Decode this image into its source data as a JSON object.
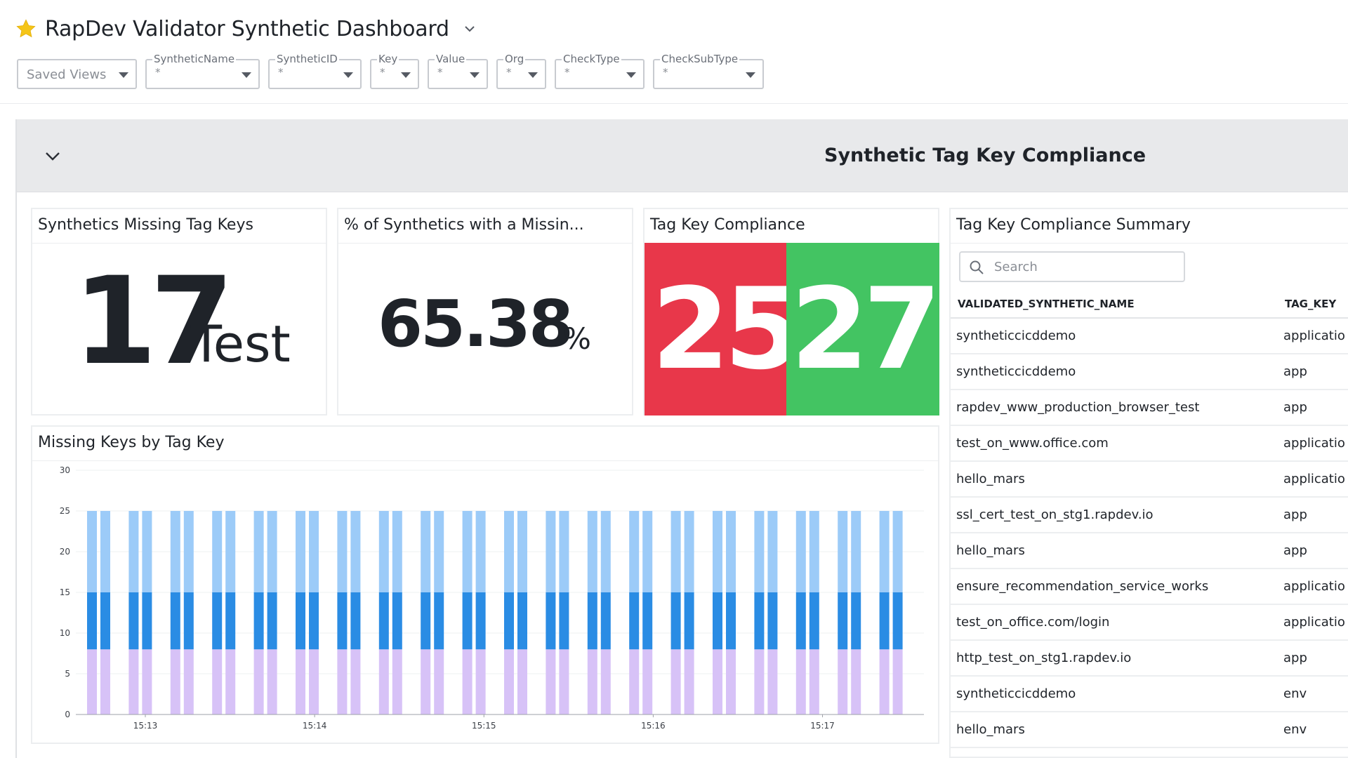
{
  "dashboard": {
    "title": "RapDev Validator Synthetic Dashboard",
    "star_color": "#f5c518"
  },
  "variables": [
    {
      "label": "",
      "value": "Saved Views"
    },
    {
      "label": "SyntheticName",
      "value": "*"
    },
    {
      "label": "SyntheticID",
      "value": "*"
    },
    {
      "label": "Key",
      "value": "*"
    },
    {
      "label": "Value",
      "value": "*"
    },
    {
      "label": "Org",
      "value": "*"
    },
    {
      "label": "CheckType",
      "value": "*"
    },
    {
      "label": "CheckSubType",
      "value": "*"
    }
  ],
  "group": {
    "title": "Synthetic Tag Key Compliance"
  },
  "widgets": {
    "missing": {
      "title": "Synthetics Missing Tag Keys",
      "value": "17",
      "unit": "Test"
    },
    "percent": {
      "title": "% of Synthetics with a Missin...",
      "value": "65.38",
      "unit": "%"
    },
    "compliance": {
      "title": "Tag Key Compliance",
      "noncompliant": "25",
      "compliant": "27",
      "red": "#e8374a",
      "green": "#43c462"
    },
    "chart": {
      "title": "Missing Keys by Tag Key"
    },
    "summary": {
      "title": "Tag Key Compliance Summary",
      "search_placeholder": "Search",
      "columns": [
        "VALIDATED_SYNTHETIC_NAME",
        "TAG_KEY"
      ],
      "rows": [
        [
          "syntheticcicddemo",
          "applicatio"
        ],
        [
          "syntheticcicddemo",
          "app"
        ],
        [
          "rapdev_www_production_browser_test",
          "app"
        ],
        [
          "test_on_www.office.com",
          "applicatio"
        ],
        [
          "hello_mars",
          "applicatio"
        ],
        [
          "ssl_cert_test_on_stg1.rapdev.io",
          "app"
        ],
        [
          "hello_mars",
          "app"
        ],
        [
          "ensure_recommendation_service_works",
          "applicatio"
        ],
        [
          "test_on_office.com/login",
          "applicatio"
        ],
        [
          "http_test_on_stg1.rapdev.io",
          "app"
        ],
        [
          "syntheticcicddemo",
          "env"
        ],
        [
          "hello_mars",
          "env"
        ]
      ]
    }
  },
  "chart_data": {
    "type": "bar",
    "stacked": true,
    "x_tick_labels": [
      "15:13",
      "15:14",
      "15:15",
      "15:16",
      "15:17"
    ],
    "yticks": [
      0,
      5,
      10,
      15,
      20,
      25,
      30
    ],
    "ylim": [
      0,
      30
    ],
    "grid": true,
    "bars_count": 40,
    "series": [
      {
        "color": "#d7c2f7",
        "values": [
          8,
          8,
          8,
          8,
          8,
          8,
          8,
          8,
          8,
          8,
          8,
          8,
          8,
          8,
          8,
          8,
          8,
          8,
          8,
          8,
          8,
          8,
          8,
          8,
          8,
          8,
          8,
          8,
          8,
          8,
          8,
          8,
          8,
          8,
          8,
          8,
          8,
          8,
          8,
          8
        ]
      },
      {
        "color": "#2a8ce4",
        "values": [
          7,
          7,
          7,
          7,
          7,
          7,
          7,
          7,
          7,
          7,
          7,
          7,
          7,
          7,
          7,
          7,
          7,
          7,
          7,
          7,
          7,
          7,
          7,
          7,
          7,
          7,
          7,
          7,
          7,
          7,
          7,
          7,
          7,
          7,
          7,
          7,
          7,
          7,
          7,
          7
        ]
      },
      {
        "color": "#9ccbf8",
        "values": [
          10,
          10,
          10,
          10,
          10,
          10,
          10,
          10,
          10,
          10,
          10,
          10,
          10,
          10,
          10,
          10,
          10,
          10,
          10,
          10,
          10,
          10,
          10,
          10,
          10,
          10,
          10,
          10,
          10,
          10,
          10,
          10,
          10,
          10,
          10,
          10,
          10,
          10,
          10,
          10
        ]
      }
    ]
  }
}
